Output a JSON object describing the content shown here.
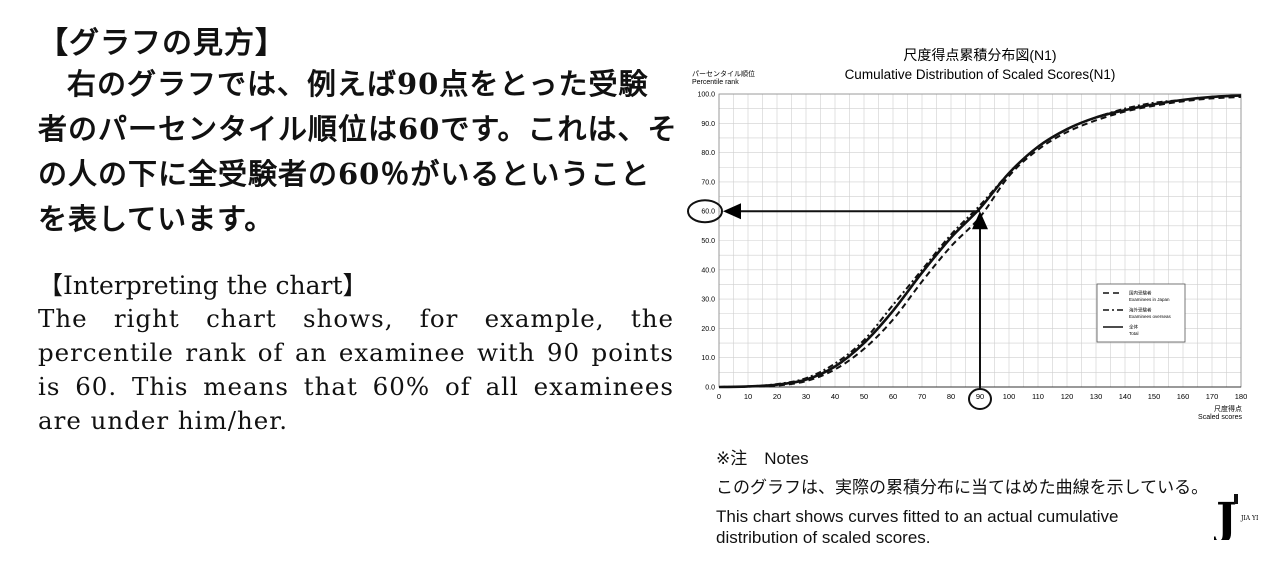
{
  "text_panel": {
    "jp_heading": "【グラフの見方】",
    "jp_body": "右のグラフでは、例えば90点をとった受験者のパーセンタイル順位は60です。これは、その人の下に全受験者の60％がいるということを表しています。",
    "en_heading": "【Interpreting the chart】",
    "en_body": "The right chart shows, for example, the percentile rank of an examinee with 90 points is 60. This means that 60% of all examinees are under him/her."
  },
  "chart_data": {
    "type": "line",
    "title": "尺度得点累積分布図(N1)",
    "subtitle": "Cumulative Distribution of Scaled Scores(N1)",
    "ylabel_jp": "パーセンタイル順位",
    "ylabel_en": "Percentile rank",
    "xlabel_jp": "尺度得点",
    "xlabel_en": "Scaled scores",
    "xlim": [
      0,
      180
    ],
    "ylim": [
      0,
      100
    ],
    "x_ticks": [
      0,
      10,
      20,
      30,
      40,
      50,
      60,
      70,
      80,
      90,
      100,
      110,
      120,
      130,
      140,
      150,
      160,
      170,
      180
    ],
    "y_ticks": [
      "0.0",
      "10.0",
      "20.0",
      "30.0",
      "40.0",
      "50.0",
      "60.0",
      "70.0",
      "80.0",
      "90.0",
      "100.0"
    ],
    "grid": true,
    "legend_position": "right-middle",
    "x": [
      0,
      10,
      20,
      30,
      40,
      50,
      60,
      70,
      80,
      90,
      100,
      110,
      120,
      130,
      140,
      150,
      160,
      170,
      180
    ],
    "series": [
      {
        "name": "国内受験者",
        "name_en": "Examinees in Japan",
        "style": "dashed",
        "values": [
          0,
          0.1,
          0.5,
          2,
          6,
          13,
          23,
          36,
          48,
          58,
          72,
          81,
          87,
          91,
          94,
          96,
          97.5,
          98.5,
          99
        ]
      },
      {
        "name": "海外受験者",
        "name_en": "Examinees overseas",
        "style": "dashdot",
        "values": [
          0,
          0.2,
          1,
          3,
          8,
          16,
          28,
          40,
          52,
          62,
          73,
          82,
          88,
          92,
          95,
          97,
          98,
          99,
          99.5
        ]
      },
      {
        "name": "全体",
        "name_en": "Total",
        "style": "solid",
        "values": [
          0,
          0.2,
          0.8,
          2.5,
          7,
          15,
          26,
          39,
          51,
          61,
          73,
          82,
          88,
          92,
          94.5,
          96.5,
          98,
          99,
          99.5
        ]
      }
    ],
    "annotation": {
      "x": 90,
      "y": 60,
      "x_label": "90",
      "y_label": "60.0"
    }
  },
  "notes": {
    "head": "※注　Notes",
    "jp": "このグラフは、実際の累積分布に当てはめた曲線を示している。",
    "en": "This chart shows curves fitted to an actual cumulative distribution of scaled scores."
  },
  "logo": {
    "mark": "J",
    "text": "JIA YI"
  }
}
